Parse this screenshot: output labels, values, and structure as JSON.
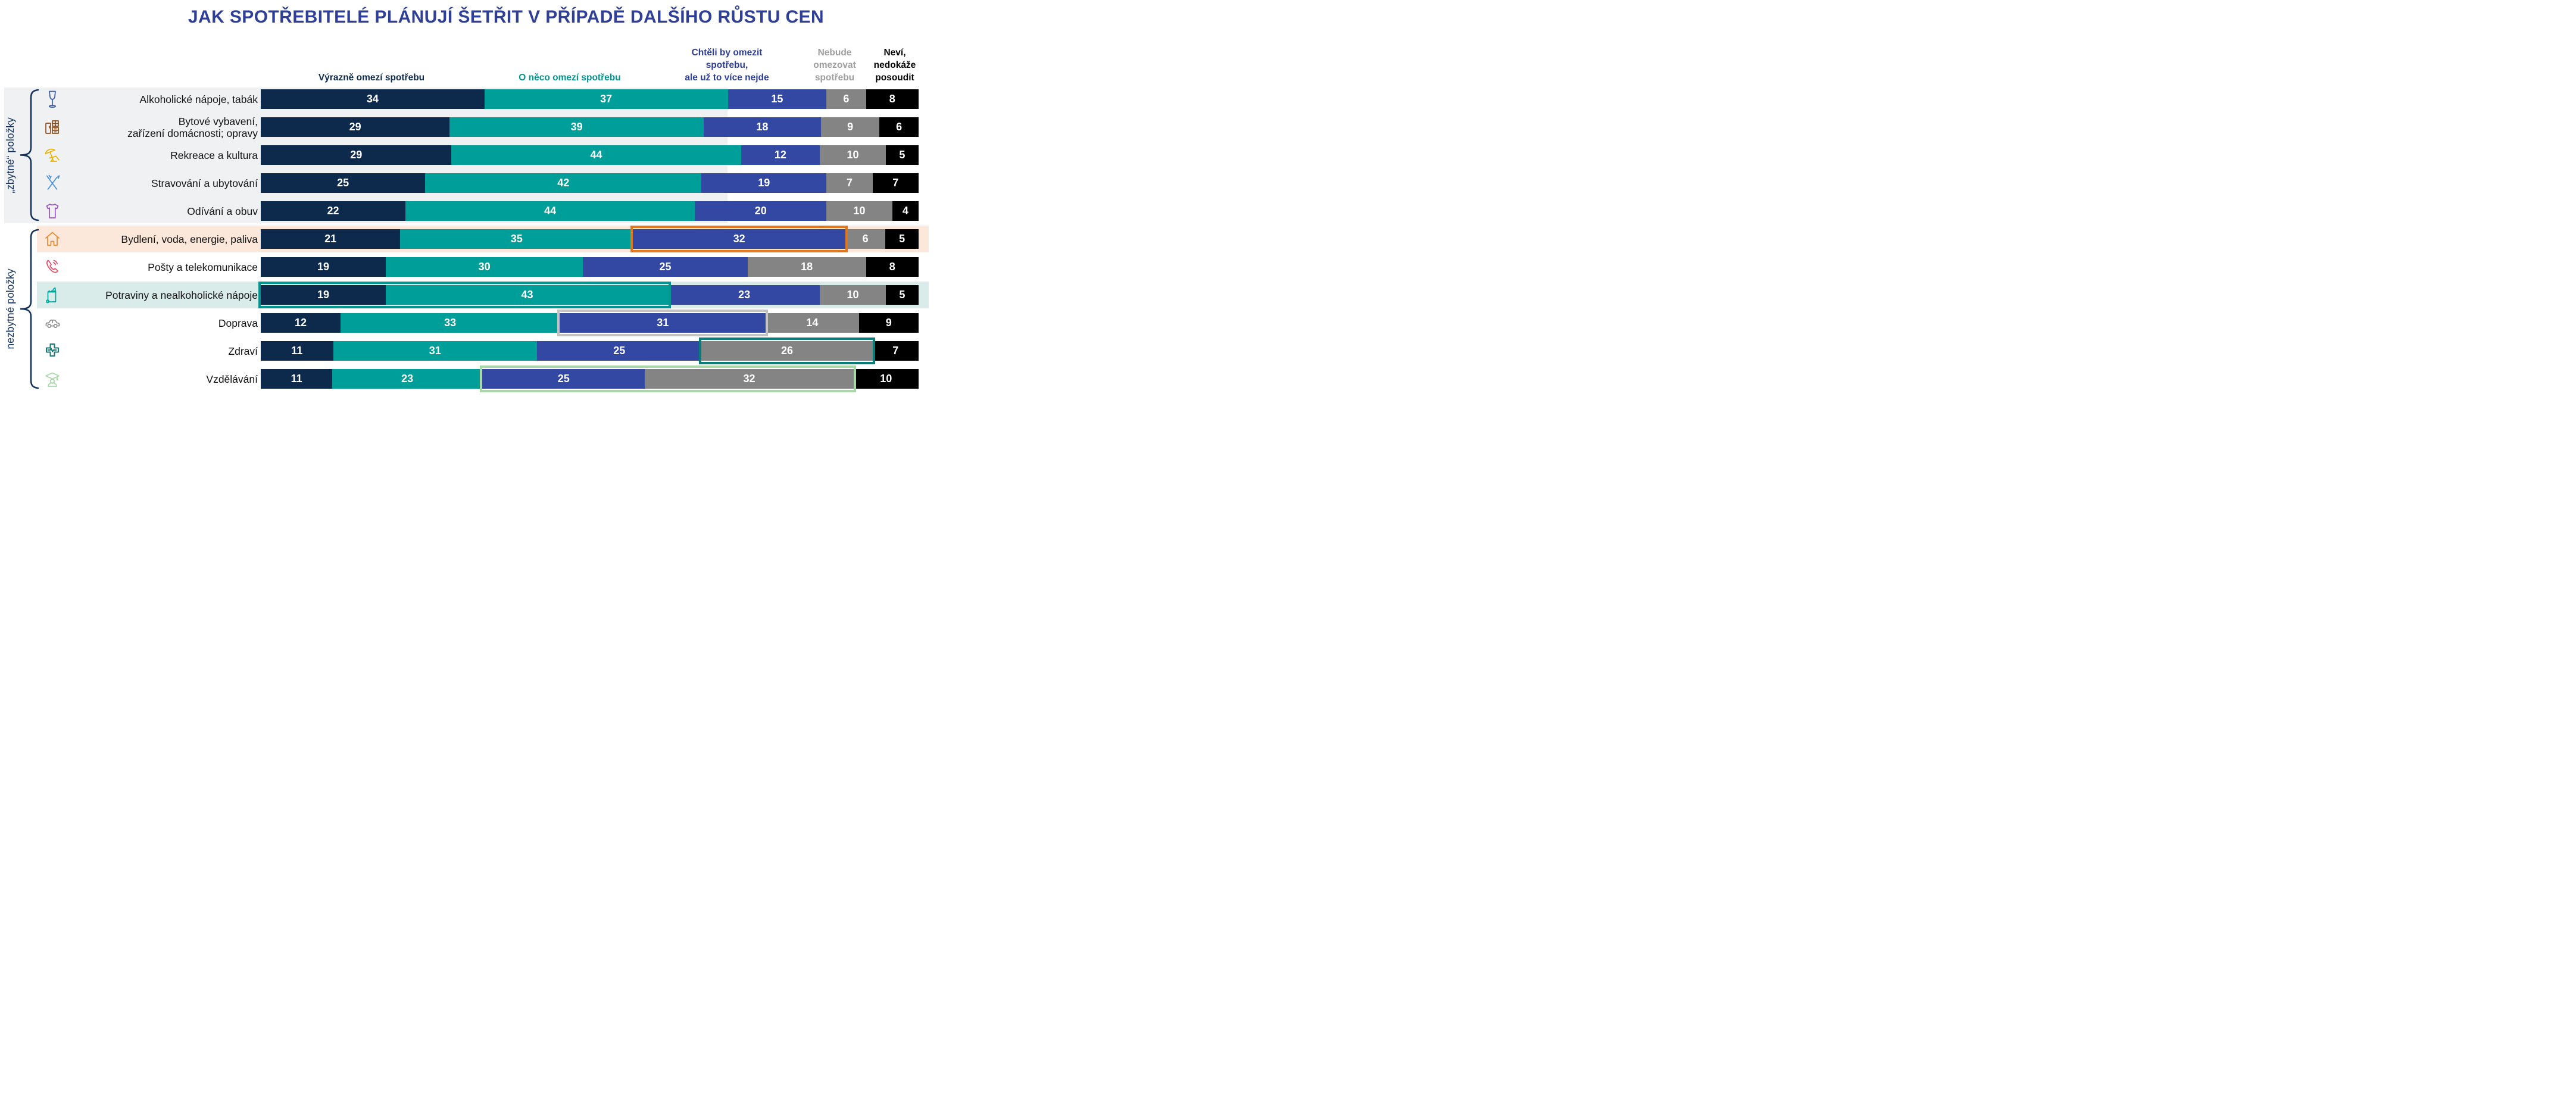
{
  "page": {
    "background": "#FFFFFF"
  },
  "chart_data": {
    "type": "bar",
    "stacked": true,
    "orientation": "horizontal",
    "unit": "%",
    "title": "JAK SPOTŘEBITELÉ PLÁNUJÍ ŠETŘIT V PŘÍPADĚ DALŠÍHO RŮSTU CEN",
    "title_color": "#2F3F97",
    "value_label_color": "#FFFFFF",
    "xlim": [
      0,
      100
    ],
    "grid": false,
    "legend_position": "top",
    "categories": [
      {
        "label_lines": [
          "Alkoholické nápoje, tabák"
        ],
        "icon": "wine-glass-icon",
        "icon_color": "#3A5BA9",
        "group": "„zbytné“ položky"
      },
      {
        "label_lines": [
          "Bytové vybavení,",
          "zařízení domácnosti; opravy"
        ],
        "icon": "furniture-icon",
        "icon_color": "#8E4D1B",
        "group": "„zbytné“ položky"
      },
      {
        "label_lines": [
          "Rekreace a kultura"
        ],
        "icon": "beach-umbrella-icon",
        "icon_color": "#E8B40A",
        "group": "„zbytné“ položky"
      },
      {
        "label_lines": [
          "Stravování a ubytování"
        ],
        "icon": "cutlery-icon",
        "icon_color": "#4A90D9",
        "group": "„zbytné“ položky"
      },
      {
        "label_lines": [
          "Odívání a obuv"
        ],
        "icon": "tshirt-icon",
        "icon_color": "#9C52C4",
        "group": "„zbytné“ položky"
      },
      {
        "label_lines": [
          "Bydlení, voda, energie, paliva"
        ],
        "icon": "house-icon",
        "icon_color": "#E8872A",
        "group": "nezbytné položky",
        "row_background": "#FBE8DA"
      },
      {
        "label_lines": [
          "Pošty a telekomunikace"
        ],
        "icon": "phone-icon",
        "icon_color": "#E84A63",
        "group": "nezbytné položky"
      },
      {
        "label_lines": [
          "Potraviny a nealkoholické nápoje"
        ],
        "icon": "grocery-bag-icon",
        "icon_color": "#00A79B",
        "group": "nezbytné položky",
        "row_background": "#DAECEA"
      },
      {
        "label_lines": [
          "Doprava"
        ],
        "icon": "car-icon",
        "icon_color": "#8C8C8C",
        "group": "nezbytné položky"
      },
      {
        "label_lines": [
          "Zdraví"
        ],
        "icon": "health-cross-icon",
        "icon_color": "#1B7B78",
        "group": "nezbytné položky"
      },
      {
        "label_lines": [
          "Vzdělávání"
        ],
        "icon": "graduate-icon",
        "icon_color": "#A8D8A8",
        "group": "nezbytné položky"
      }
    ],
    "series": [
      {
        "name": "Výrazně omezí spotřebu",
        "header_lines": [
          "Výrazně omezí spotřebu"
        ],
        "color": "#0D2A4D",
        "header_color": "#0D2A4D",
        "values": [
          34,
          29,
          29,
          25,
          22,
          21,
          19,
          19,
          12,
          11,
          11
        ]
      },
      {
        "name": "O něco omezí spotřebu",
        "header_lines": [
          "O něco omezí spotřebu"
        ],
        "color": "#009E98",
        "header_color": "#00968F",
        "values": [
          37,
          39,
          44,
          42,
          44,
          35,
          30,
          43,
          33,
          31,
          23
        ]
      },
      {
        "name": "Chtěli by omezit spotřebu, ale už to více nejde",
        "header_lines": [
          "Chtěli by omezit",
          "spotřebu,",
          "ale už to více nejde"
        ],
        "color": "#3348A2",
        "header_color": "#2D3E96",
        "values": [
          15,
          18,
          12,
          19,
          20,
          32,
          25,
          23,
          31,
          25,
          25
        ]
      },
      {
        "name": "Nebude omezovat spotřebu",
        "header_lines": [
          "Nebude",
          "omezovat",
          "spotřebu"
        ],
        "color": "#848484",
        "header_color": "#9E9E9E",
        "values": [
          6,
          9,
          10,
          7,
          10,
          6,
          18,
          10,
          14,
          26,
          32
        ]
      },
      {
        "name": "Neví, nedokáže posoudit",
        "header_lines": [
          "Neví,",
          "nedokáže",
          "posoudit"
        ],
        "color": "#000000",
        "header_color": "#000000",
        "values": [
          8,
          6,
          5,
          7,
          4,
          5,
          8,
          5,
          9,
          7,
          10
        ]
      }
    ],
    "groups": [
      {
        "label": "„zbytné“ položky",
        "rows": [
          0,
          4
        ],
        "panel_color": "#EFF1F3"
      },
      {
        "label": "nezbytné položky",
        "rows": [
          5,
          10
        ],
        "panel_color": null
      }
    ],
    "highlights": [
      {
        "name": "highlight-bydleni-chteli-by-32",
        "category_index": 5,
        "series_from": 2,
        "series_to": 2,
        "color": "#E2761B"
      },
      {
        "name": "highlight-potraviny-omezi-19-43",
        "category_index": 7,
        "series_from": 0,
        "series_to": 1,
        "color": "#00958E"
      },
      {
        "name": "highlight-doprava-chteli-by-31",
        "category_index": 8,
        "series_from": 2,
        "series_to": 2,
        "color": "#C4C4C4"
      },
      {
        "name": "highlight-zdravi-nebude-26",
        "category_index": 9,
        "series_from": 3,
        "series_to": 3,
        "color": "#077C78"
      },
      {
        "name": "highlight-vzdelavani-25-32",
        "category_index": 10,
        "series_from": 2,
        "series_to": 3,
        "color": "#A8D8A8"
      }
    ]
  }
}
